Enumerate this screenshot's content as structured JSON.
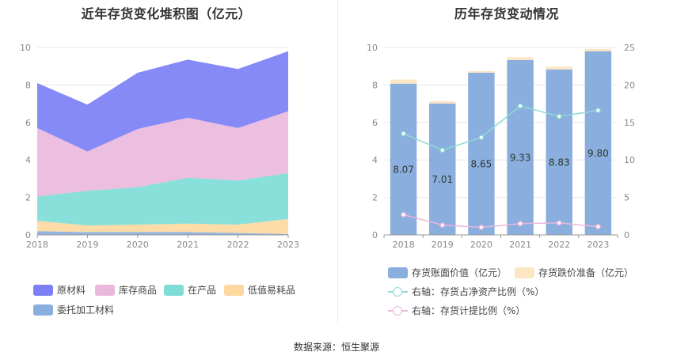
{
  "left": {
    "title": "近年存货变化堆积图（亿元）",
    "legend": [
      {
        "label": "原材料",
        "color": "#7b80f5"
      },
      {
        "label": "库存商品",
        "color": "#eab8dc"
      },
      {
        "label": "在产品",
        "color": "#7fdcd6"
      },
      {
        "label": "低值易耗品",
        "color": "#fdd9a0"
      },
      {
        "label": "委托加工材料",
        "color": "#8aaedd"
      }
    ]
  },
  "right": {
    "title": "历年存货变动情况",
    "legend": [
      {
        "label": "存货账面价值（亿元）",
        "color": "#8aaedd",
        "kind": "bar"
      },
      {
        "label": "存货跌价准备（亿元）",
        "color": "#fde6c4",
        "kind": "bar"
      },
      {
        "label": "右轴：存货占净资产比例（%）",
        "color": "#8fdad5",
        "kind": "line"
      },
      {
        "label": "右轴：存货计提比例（%）",
        "color": "#eab8dc",
        "kind": "line"
      }
    ]
  },
  "source": "数据来源：恒生聚源",
  "chart_data": [
    {
      "type": "area",
      "stacked": true,
      "title": "近年存货变化堆积图（亿元）",
      "x": [
        "2018",
        "2019",
        "2020",
        "2021",
        "2022",
        "2023"
      ],
      "ylim": [
        0,
        10
      ],
      "yticks": [
        0,
        2,
        4,
        6,
        8,
        10
      ],
      "grid": true,
      "legend_position": "bottom",
      "series": [
        {
          "name": "委托加工材料",
          "color": "#8aaedd",
          "values": [
            0.2,
            0.15,
            0.15,
            0.15,
            0.1,
            0.05
          ]
        },
        {
          "name": "低值易耗品",
          "color": "#fdd9a0",
          "values": [
            0.55,
            0.35,
            0.4,
            0.45,
            0.45,
            0.8
          ]
        },
        {
          "name": "在产品",
          "color": "#7fdcd6",
          "values": [
            1.3,
            1.85,
            2.0,
            2.45,
            2.35,
            2.45
          ]
        },
        {
          "name": "库存商品",
          "color": "#eab8dc",
          "values": [
            3.65,
            2.1,
            3.1,
            3.2,
            2.8,
            3.3
          ]
        },
        {
          "name": "原材料",
          "color": "#7b80f5",
          "values": [
            2.4,
            2.5,
            3.0,
            3.1,
            3.15,
            3.2
          ]
        }
      ]
    },
    {
      "type": "bar",
      "stacked": true,
      "title": "历年存货变动情况",
      "categories": [
        "2018",
        "2019",
        "2020",
        "2021",
        "2022",
        "2023"
      ],
      "ylim": [
        0,
        10
      ],
      "yticks": [
        0,
        2,
        4,
        6,
        8,
        10
      ],
      "y2lim": [
        0,
        25
      ],
      "y2ticks": [
        0,
        5,
        10,
        15,
        20,
        25
      ],
      "grid": true,
      "legend_position": "bottom",
      "series": [
        {
          "name": "存货账面价值（亿元）",
          "color": "#8aaedd",
          "axis": "left",
          "kind": "bar",
          "values": [
            8.07,
            7.01,
            8.65,
            9.33,
            8.83,
            9.8
          ],
          "labels": [
            "8.07",
            "7.01",
            "8.65",
            "9.33",
            "8.83",
            "9.80"
          ]
        },
        {
          "name": "存货跌价准备（亿元）",
          "color": "#fde6c4",
          "axis": "left",
          "kind": "bar",
          "values": [
            0.22,
            0.12,
            0.09,
            0.15,
            0.15,
            0.12
          ]
        },
        {
          "name": "右轴：存货占净资产比例（%）",
          "color": "#8fdad5",
          "axis": "right",
          "kind": "line",
          "values": [
            13.5,
            11.3,
            13.0,
            17.2,
            15.8,
            16.6
          ]
        },
        {
          "name": "右轴：存货计提比例（%）",
          "color": "#eab8dc",
          "axis": "right",
          "kind": "line",
          "values": [
            2.7,
            1.3,
            1.0,
            1.5,
            1.6,
            1.1
          ]
        }
      ]
    }
  ]
}
